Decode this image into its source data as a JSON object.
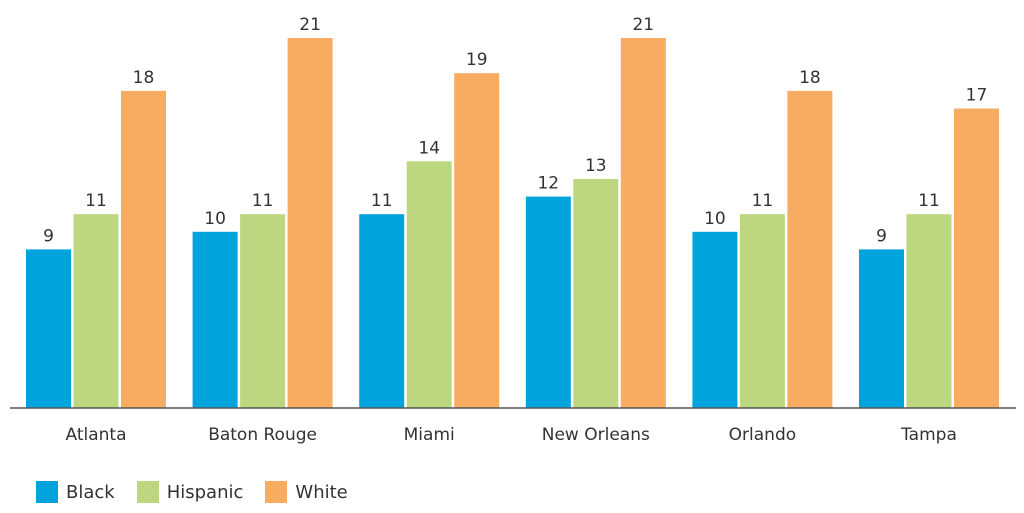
{
  "chart_data": {
    "type": "bar",
    "categories": [
      "Atlanta",
      "Baton Rouge",
      "Miami",
      "New Orleans",
      "Orlando",
      "Tampa"
    ],
    "series": [
      {
        "name": "Black",
        "color": "#00a3dc",
        "values": [
          9,
          10,
          11,
          12,
          10,
          9
        ]
      },
      {
        "name": "Hispanic",
        "color": "#bdd780",
        "values": [
          11,
          11,
          14,
          13,
          11,
          11
        ]
      },
      {
        "name": "White",
        "color": "#f7ac62",
        "values": [
          18,
          21,
          19,
          21,
          18,
          17
        ]
      }
    ],
    "title": "",
    "xlabel": "",
    "ylabel": "",
    "ylim": [
      0,
      21
    ],
    "grid": false,
    "legend_position": "bottom-left"
  }
}
